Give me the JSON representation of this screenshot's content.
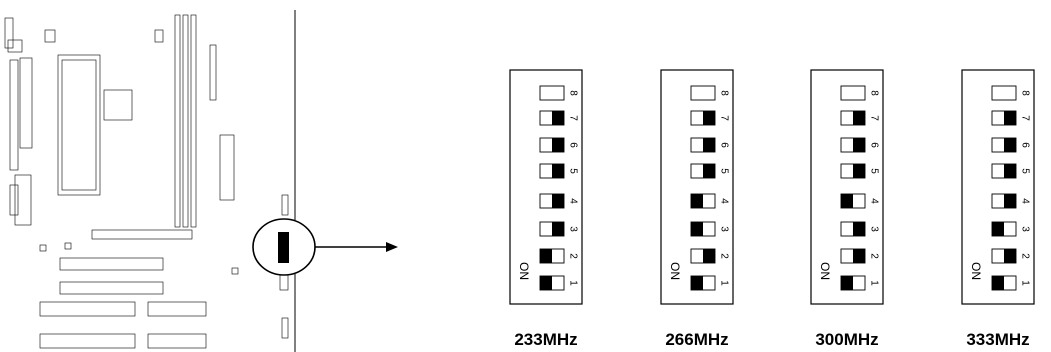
{
  "on_label": "ON",
  "switch_numbers": [
    "8",
    "7",
    "6",
    "5",
    "4",
    "3",
    "2",
    "1"
  ],
  "configs": [
    {
      "freq": "233MHz",
      "switches": [
        "none",
        "right",
        "right",
        "right",
        "right",
        "right",
        "left",
        "left"
      ]
    },
    {
      "freq": "266MHz",
      "switches": [
        "none",
        "right",
        "right",
        "right",
        "left",
        "left",
        "right",
        "left"
      ]
    },
    {
      "freq": "300MHz",
      "switches": [
        "none",
        "right",
        "right",
        "right",
        "left",
        "right",
        "right",
        "left"
      ]
    },
    {
      "freq": "333MHz",
      "switches": [
        "none",
        "right",
        "right",
        "right",
        "right",
        "left",
        "right",
        "left"
      ]
    }
  ]
}
